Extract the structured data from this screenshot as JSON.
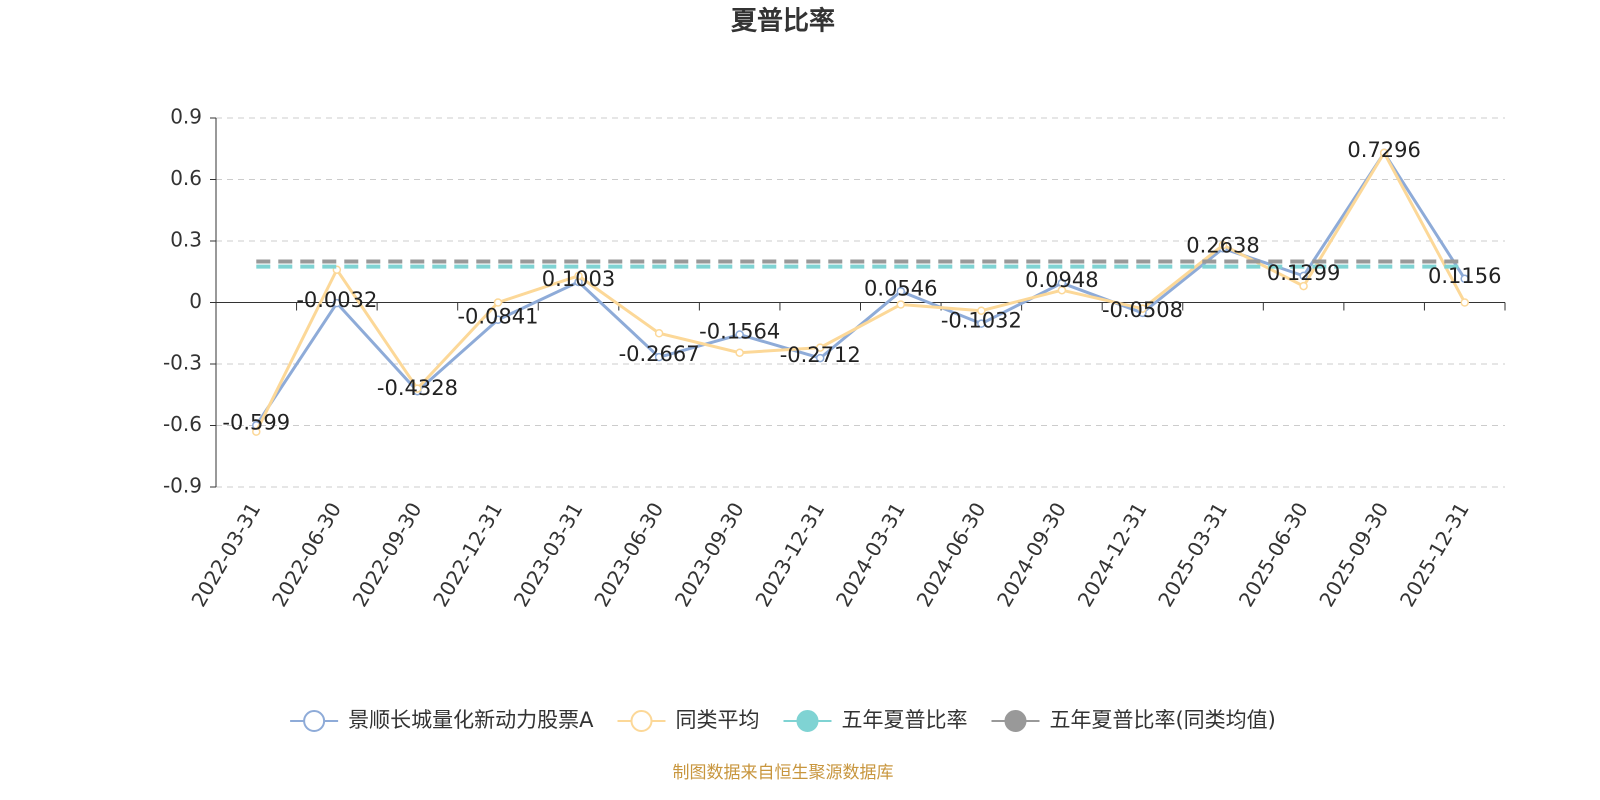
{
  "chart_data": {
    "type": "line",
    "title": "夏普比率",
    "categories": [
      "2022-03-31",
      "2022-06-30",
      "2022-09-30",
      "2022-12-31",
      "2023-03-31",
      "2023-06-30",
      "2023-09-30",
      "2023-12-31",
      "2024-03-31",
      "2024-06-30",
      "2024-09-30",
      "2024-12-31",
      "2025-03-31",
      "2025-06-30",
      "2025-09-30",
      "2025-12-31"
    ],
    "series": [
      {
        "name": "景顺长城量化新动力股票A",
        "color": "#8eabd8",
        "values": [
          -0.599,
          -0.0032,
          -0.4328,
          -0.0841,
          0.1003,
          -0.2667,
          -0.1564,
          -0.2712,
          0.0546,
          -0.1032,
          0.0948,
          -0.0508,
          0.2638,
          0.1299,
          0.7296,
          0.1156
        ]
      },
      {
        "name": "同类平均",
        "color": "#fcd898",
        "values": [
          -0.63,
          0.16,
          -0.42,
          0.0,
          0.13,
          -0.15,
          -0.245,
          -0.22,
          -0.01,
          -0.04,
          0.06,
          -0.03,
          0.28,
          0.08,
          0.73,
          0.0
        ]
      },
      {
        "name": "五年夏普比率",
        "color": "#7fd3d3",
        "value": 0.175
      },
      {
        "name": "五年夏普比率(同类均值)",
        "color": "#999999",
        "value": 0.2
      }
    ],
    "ylim": [
      -0.9,
      0.9
    ],
    "yticks": [
      -0.9,
      -0.6,
      -0.3,
      0,
      0.3,
      0.6,
      0.9
    ],
    "grid": true,
    "source": "制图数据来自恒生聚源数据库"
  }
}
